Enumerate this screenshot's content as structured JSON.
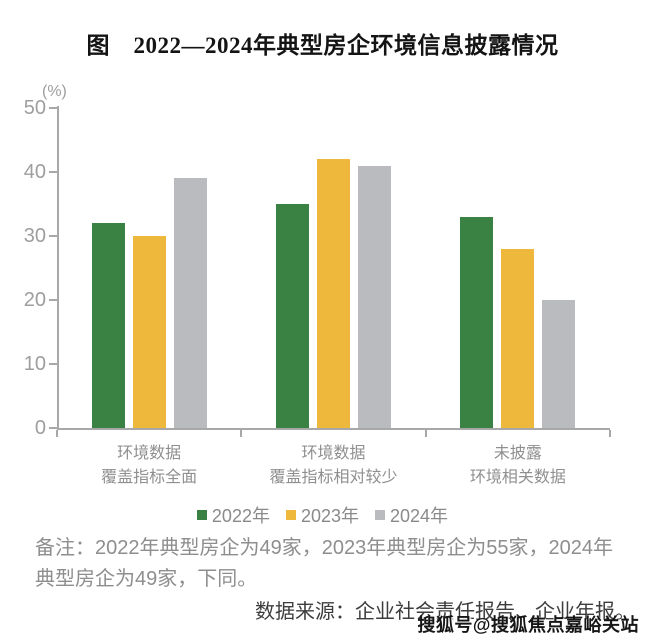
{
  "title": "图　2022—2024年典型房企环境信息披露情况",
  "chart_data": {
    "type": "bar",
    "title": "图　2022—2024年典型房企环境信息披露情况",
    "unit_label": "(%)",
    "categories": [
      [
        "环境数据",
        "覆盖指标全面"
      ],
      [
        "环境数据",
        "覆盖指标相对较少"
      ],
      [
        "未披露",
        "环境相关数据"
      ]
    ],
    "series": [
      {
        "name": "2022年",
        "color": "#3a8144",
        "values": [
          32,
          35,
          33
        ]
      },
      {
        "name": "2023年",
        "color": "#edb83c",
        "values": [
          30,
          42,
          28
        ]
      },
      {
        "name": "2024年",
        "color": "#b9bbbe",
        "values": [
          39,
          41,
          20
        ]
      }
    ],
    "ylim": [
      0,
      50
    ],
    "yticks": [
      0,
      10,
      20,
      30,
      40,
      50
    ],
    "grid": false,
    "legend_position": "bottom"
  },
  "note": "备注：2022年典型房企为49家，2023年典型房企为55家，2024年典型房企为49家，下同。",
  "source": "数据来源：企业社会责任报告、企业年报。",
  "watermark": "搜狐号@搜狐焦点嘉峪关站"
}
